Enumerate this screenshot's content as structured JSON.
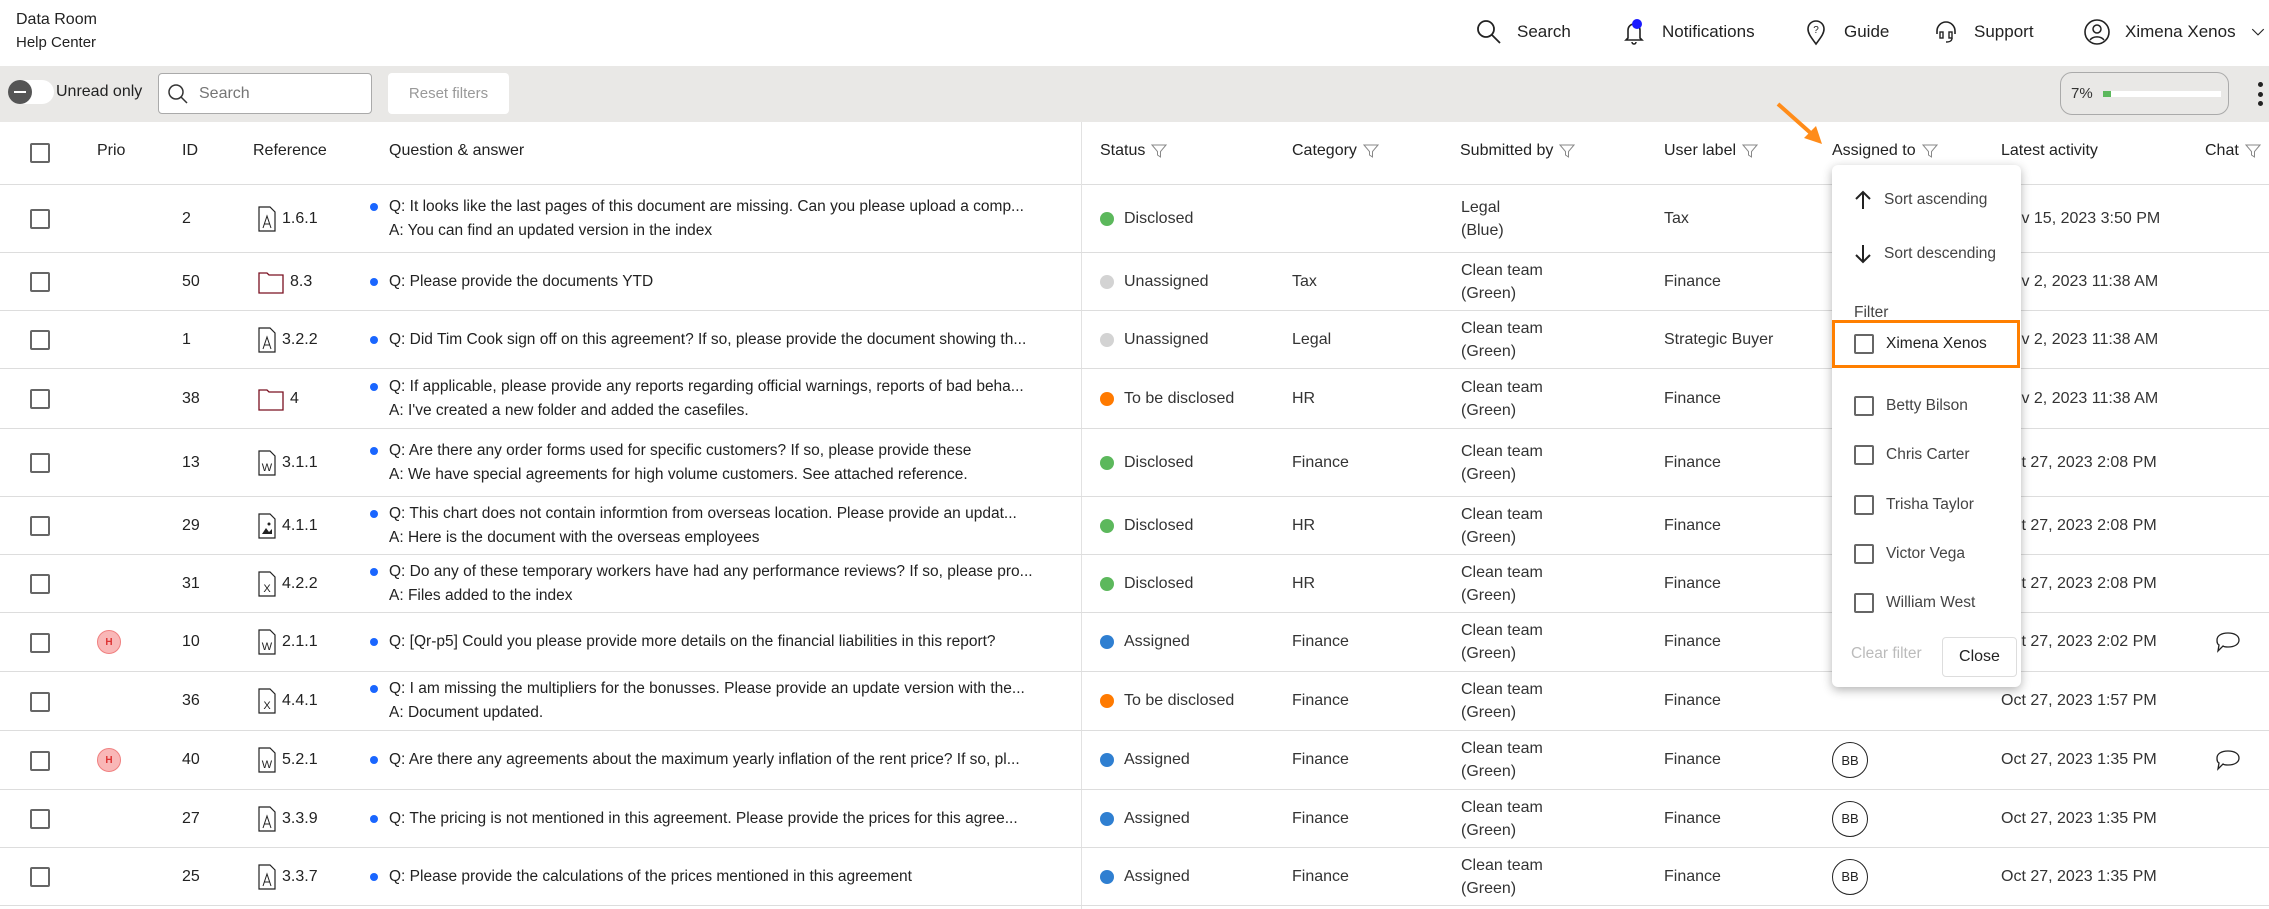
{
  "header": {
    "app_title": "Data Room",
    "subtitle": "Help Center",
    "nav": [
      {
        "label": "Search",
        "icon": "search-icon"
      },
      {
        "label": "Notifications",
        "icon": "bell-icon"
      },
      {
        "label": "Guide",
        "icon": "guide-icon"
      },
      {
        "label": "Support",
        "icon": "headset-icon"
      },
      {
        "label": "Ximena Xenos",
        "icon": "user-icon"
      }
    ],
    "notification_dot_color": "#1a1aff"
  },
  "toolbar": {
    "unread_label": "Unread only",
    "search_placeholder": "Search",
    "reset_label": "Reset filters",
    "progress_label": "7%",
    "progress_percent": 7,
    "progress_color": "#5cb85c"
  },
  "columns": [
    "Prio",
    "ID",
    "Reference",
    "Question & answer",
    "Status",
    "Category",
    "Submitted by",
    "User label",
    "Assigned to",
    "Latest activity",
    "Chat"
  ],
  "status_colors": {
    "Disclosed": "#5cb85c",
    "Unassigned": "#d3d3d3",
    "To be disclosed": "#ff7a00",
    "Assigned": "#2f7fd1"
  },
  "rows": [
    {
      "prio": "",
      "id": "2",
      "ref_icon": "pdf",
      "ref": "1.6.1",
      "q": "Q: It looks like the last pages of this document are missing. Can you please upload a comp...",
      "a": "A: You can find an updated version in the index",
      "status": "Disclosed",
      "category": "",
      "submitted": "Legal",
      "submitted_team": "(Blue)",
      "label": "Tax",
      "assigned": "",
      "activity": "Nov 15, 2023 3:50 PM",
      "chat": false
    },
    {
      "prio": "",
      "id": "50",
      "ref_icon": "folder",
      "ref": "8.3",
      "q": "Q: Please provide the documents YTD",
      "a": "",
      "status": "Unassigned",
      "category": "Tax",
      "submitted": "Clean team",
      "submitted_team": "(Green)",
      "label": "Finance",
      "assigned": "",
      "activity": "Nov 2, 2023 11:38 AM",
      "chat": false
    },
    {
      "prio": "",
      "id": "1",
      "ref_icon": "pdf",
      "ref": "3.2.2",
      "q": "Q: Did Tim Cook sign off on this agreement? If so, please provide the document showing th...",
      "a": "",
      "status": "Unassigned",
      "category": "Legal",
      "submitted": "Clean team",
      "submitted_team": "(Green)",
      "label": "Strategic Buyer",
      "assigned": "",
      "activity": "Nov 2, 2023 11:38 AM",
      "chat": false
    },
    {
      "prio": "",
      "id": "38",
      "ref_icon": "folder",
      "ref": "4",
      "q": "Q: If applicable, please provide any reports regarding official warnings, reports of bad beha...",
      "a": "A: I've created a new folder and added the casefiles.",
      "status": "To be disclosed",
      "category": "HR",
      "submitted": "Clean team",
      "submitted_team": "(Green)",
      "label": "Finance",
      "assigned": "",
      "activity": "Nov 2, 2023 11:38 AM",
      "chat": false
    },
    {
      "prio": "",
      "id": "13",
      "ref_icon": "word",
      "ref": "3.1.1",
      "q": "Q: Are there any order forms used for specific customers? If so, please provide these",
      "a": "A: We have special agreements for high volume customers. See attached reference.",
      "status": "Disclosed",
      "category": "Finance",
      "submitted": "Clean team",
      "submitted_team": "(Green)",
      "label": "Finance",
      "assigned": "",
      "activity": "Oct 27, 2023 2:08 PM",
      "chat": false
    },
    {
      "prio": "",
      "id": "29",
      "ref_icon": "image",
      "ref": "4.1.1",
      "q": "Q: This chart does not contain informtion from overseas location. Please provide an updat...",
      "a": "A: Here is the document with the overseas employees",
      "status": "Disclosed",
      "category": "HR",
      "submitted": "Clean team",
      "submitted_team": "(Green)",
      "label": "Finance",
      "assigned": "",
      "activity": "Oct 27, 2023 2:08 PM",
      "chat": false
    },
    {
      "prio": "",
      "id": "31",
      "ref_icon": "excel",
      "ref": "4.2.2",
      "q": "Q: Do any of these temporary workers have had any performance reviews? If so, please pro...",
      "a": "A: Files added to the index",
      "status": "Disclosed",
      "category": "HR",
      "submitted": "Clean team",
      "submitted_team": "(Green)",
      "label": "Finance",
      "assigned": "",
      "activity": "Oct 27, 2023 2:08 PM",
      "chat": false
    },
    {
      "prio": "H",
      "id": "10",
      "ref_icon": "word",
      "ref": "2.1.1",
      "q": "Q: [Qr-p5] Could you please provide more details on the financial liabilities in this report?",
      "a": "",
      "status": "Assigned",
      "category": "Finance",
      "submitted": "Clean team",
      "submitted_team": "(Green)",
      "label": "Finance",
      "assigned": "",
      "activity": "Oct 27, 2023 2:02 PM",
      "chat": true
    },
    {
      "prio": "",
      "id": "36",
      "ref_icon": "excel",
      "ref": "4.4.1",
      "q": "Q: I am missing the multipliers for the bonusses. Please provide an update version with the...",
      "a": "A: Document updated.",
      "status": "To be disclosed",
      "category": "Finance",
      "submitted": "Clean team",
      "submitted_team": "(Green)",
      "label": "Finance",
      "assigned": "",
      "activity": "Oct 27, 2023 1:57 PM",
      "chat": false
    },
    {
      "prio": "H",
      "id": "40",
      "ref_icon": "word",
      "ref": "5.2.1",
      "q": "Q: Are there any agreements about the maximum yearly inflation of the rent price? If so, pl...",
      "a": "",
      "status": "Assigned",
      "category": "Finance",
      "submitted": "Clean team",
      "submitted_team": "(Green)",
      "label": "Finance",
      "assigned": "BB",
      "activity": "Oct 27, 2023 1:35 PM",
      "chat": true
    },
    {
      "prio": "",
      "id": "27",
      "ref_icon": "pdf",
      "ref": "3.3.9",
      "q": "Q: The pricing is not mentioned in this agreement. Please provide the prices for this agree...",
      "a": "",
      "status": "Assigned",
      "category": "Finance",
      "submitted": "Clean team",
      "submitted_team": "(Green)",
      "label": "Finance",
      "assigned": "BB",
      "activity": "Oct 27, 2023 1:35 PM",
      "chat": false
    },
    {
      "prio": "",
      "id": "25",
      "ref_icon": "pdf",
      "ref": "3.3.7",
      "q": "Q: Please provide the calculations of the prices mentioned in this agreement",
      "a": "",
      "status": "Assigned",
      "category": "Finance",
      "submitted": "Clean team",
      "submitted_team": "(Green)",
      "label": "Finance",
      "assigned": "BB",
      "activity": "Oct 27, 2023 1:35 PM",
      "chat": false
    }
  ],
  "dropdown": {
    "sort_asc": "Sort ascending",
    "sort_desc": "Sort descending",
    "filter_label": "Filter",
    "options": [
      "Ximena Xenos",
      "Betty Bilson",
      "Chris Carter",
      "Trisha Taylor",
      "Victor Vega",
      "William West"
    ],
    "highlighted": "Ximena Xenos",
    "highlight_color": "#ff7f00",
    "clear_label": "Clear filter",
    "close_label": "Close"
  }
}
